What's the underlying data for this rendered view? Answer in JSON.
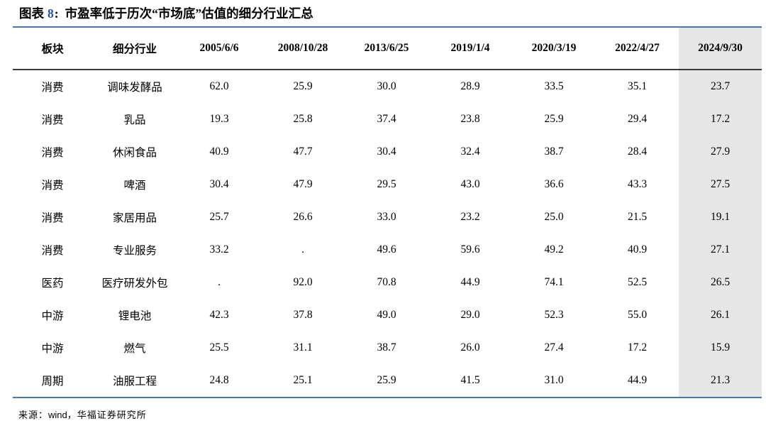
{
  "header": {
    "figure_label": "图表",
    "figure_number": "8",
    "colon": ":",
    "title": "市盈率低于历次“市场底”估值的细分行业汇总"
  },
  "table": {
    "columns": [
      "板块",
      "细分行业",
      "2005/6/6",
      "2008/10/28",
      "2013/6/25",
      "2019/1/4",
      "2020/3/19",
      "2022/4/27",
      "2024/9/30"
    ],
    "highlight_column_index": 8,
    "highlight_column_label": "2024/9/30",
    "rows": [
      {
        "sector": "消费",
        "industry": "调味发酵品",
        "values": [
          "62.0",
          "25.9",
          "30.0",
          "28.9",
          "33.5",
          "35.1",
          "23.7"
        ]
      },
      {
        "sector": "消费",
        "industry": "乳品",
        "values": [
          "19.3",
          "25.8",
          "37.4",
          "23.8",
          "25.9",
          "29.4",
          "17.2"
        ]
      },
      {
        "sector": "消费",
        "industry": "休闲食品",
        "values": [
          "40.9",
          "47.7",
          "30.4",
          "32.4",
          "38.7",
          "28.4",
          "27.9"
        ]
      },
      {
        "sector": "消费",
        "industry": "啤酒",
        "values": [
          "30.4",
          "47.9",
          "29.5",
          "43.0",
          "36.6",
          "43.3",
          "27.5"
        ]
      },
      {
        "sector": "消费",
        "industry": "家居用品",
        "values": [
          "25.7",
          "26.6",
          "33.0",
          "23.2",
          "25.0",
          "21.5",
          "19.1"
        ]
      },
      {
        "sector": "消费",
        "industry": "专业服务",
        "values": [
          "33.2",
          ".",
          "49.6",
          "59.6",
          "49.2",
          "40.9",
          "27.1"
        ]
      },
      {
        "sector": "医药",
        "industry": "医疗研发外包",
        "values": [
          ".",
          "92.0",
          "70.8",
          "44.9",
          "74.1",
          "52.5",
          "26.5"
        ]
      },
      {
        "sector": "中游",
        "industry": "锂电池",
        "values": [
          "42.3",
          "37.8",
          "49.0",
          "29.0",
          "52.3",
          "55.0",
          "26.1"
        ]
      },
      {
        "sector": "中游",
        "industry": "燃气",
        "values": [
          "25.5",
          "31.1",
          "38.7",
          "26.0",
          "27.4",
          "17.2",
          "15.9"
        ]
      },
      {
        "sector": "周期",
        "industry": "油服工程",
        "values": [
          "24.8",
          "25.1",
          "25.9",
          "41.5",
          "31.0",
          "44.9",
          "21.3"
        ]
      }
    ]
  },
  "footer": {
    "source_prefix": "来源：",
    "source_vendor": "wind",
    "source_suffix": "，华福证券研究所"
  },
  "colors": {
    "accent_blue_rule": "#4a75b8",
    "header_dark_rule": "#3a3a3a",
    "highlight_column_bg": "#e6e6e6",
    "figure_number_blue": "#2b50a1",
    "text": "#000000"
  }
}
